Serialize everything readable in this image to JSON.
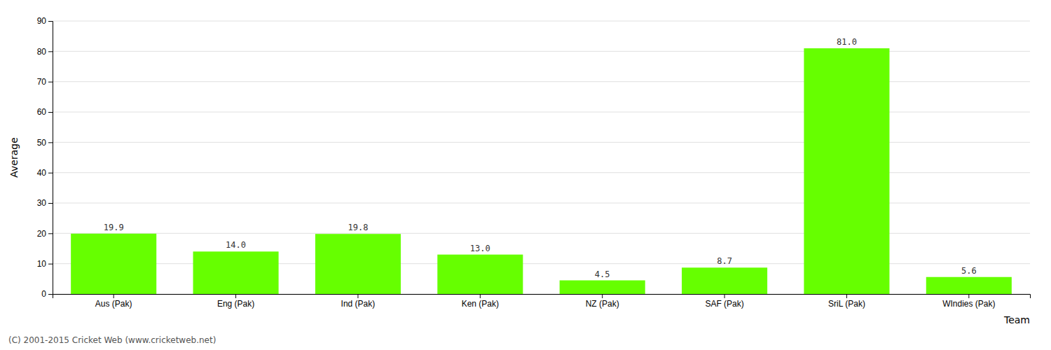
{
  "chart_data": {
    "type": "bar",
    "categories": [
      "Aus (Pak)",
      "Eng (Pak)",
      "Ind (Pak)",
      "Ken (Pak)",
      "NZ (Pak)",
      "SAF (Pak)",
      "SriL (Pak)",
      "WIndies (Pak)"
    ],
    "values": [
      19.9,
      14.0,
      19.8,
      13.0,
      4.5,
      8.7,
      81.0,
      5.6
    ],
    "value_labels": [
      "19.9",
      "14.0",
      "19.8",
      "13.0",
      "4.5",
      "8.7",
      "81.0",
      "5.6"
    ],
    "data_labels": true,
    "color": "#66ff00",
    "xlabel": "Team",
    "ylabel": "Average",
    "ylim": [
      0,
      90
    ],
    "yticks": [
      0,
      10,
      20,
      30,
      40,
      50,
      60,
      70,
      80,
      90
    ],
    "grid": true,
    "annotations": [
      "(C) 2001-2015 Cricket Web (www.cricketweb.net)"
    ]
  }
}
